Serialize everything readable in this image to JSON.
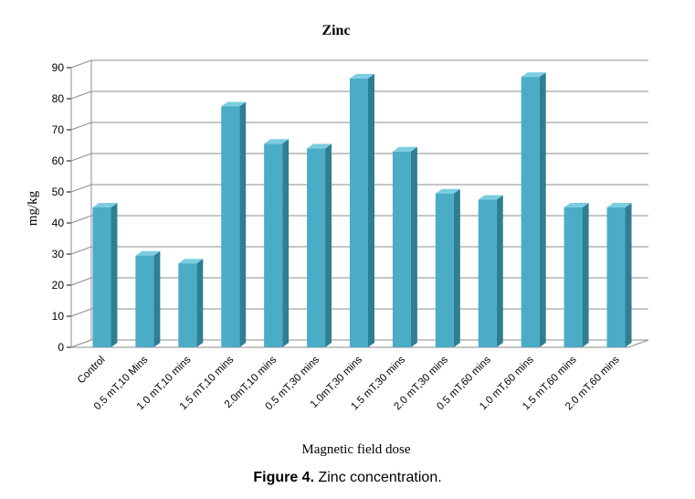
{
  "chart_data": {
    "type": "bar",
    "title": "Zinc",
    "xlabel": "Magnetic field  dose",
    "ylabel": "mg/kg",
    "ylim": [
      0,
      90
    ],
    "yticks": [
      0,
      10,
      20,
      30,
      40,
      50,
      60,
      70,
      80,
      90
    ],
    "grid": true,
    "categories": [
      "Control",
      "0.5 mT,10 Mins",
      "1.0 mT,10 mins",
      "1.5 mT,10 mins",
      "2.0mT,10 mins",
      "0.5 mT,30 mins",
      "1.0mT,30 mins",
      "1.5 mT,30 mins",
      "2.0 mT,30 mins",
      "0.5 mT,60 mins",
      "1.0 mT,60 mins",
      "1.5 mT,60 mins",
      "2.0 mT,60 mins"
    ],
    "values": [
      45,
      29.5,
      27,
      77.5,
      65.5,
      64,
      86.5,
      63,
      49.5,
      47.5,
      87,
      45,
      45
    ],
    "bar_color": "#4bacc6"
  },
  "caption": {
    "label": "Figure 4.",
    "text": " Zinc concentration."
  }
}
